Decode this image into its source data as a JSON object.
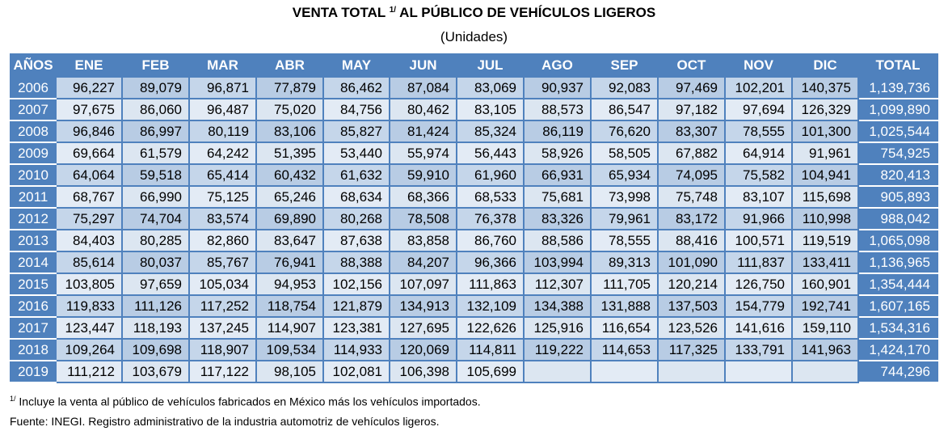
{
  "header": {
    "title_pre": "VENTA TOTAL",
    "title_sup": "1/",
    "title_post": "AL PÚBLICO DE VEHÍCULOS LIGEROS",
    "subtitle": "(Unidades)"
  },
  "table": {
    "columns": [
      "AÑOS",
      "ENE",
      "FEB",
      "MAR",
      "ABR",
      "MAY",
      "JUN",
      "JUL",
      "AGO",
      "SEP",
      "OCT",
      "NOV",
      "DIC",
      "TOTAL"
    ],
    "rows": [
      {
        "year": "2006",
        "values": [
          "96,227",
          "89,079",
          "96,871",
          "77,879",
          "86,462",
          "87,084",
          "83,069",
          "90,937",
          "92,083",
          "97,469",
          "102,201",
          "140,375"
        ],
        "total": "1,139,736"
      },
      {
        "year": "2007",
        "values": [
          "97,675",
          "86,060",
          "96,487",
          "75,020",
          "84,756",
          "80,462",
          "83,105",
          "88,573",
          "86,547",
          "97,182",
          "97,694",
          "126,329"
        ],
        "total": "1,099,890"
      },
      {
        "year": "2008",
        "values": [
          "96,846",
          "86,997",
          "80,119",
          "83,106",
          "85,827",
          "81,424",
          "85,324",
          "86,119",
          "76,620",
          "83,307",
          "78,555",
          "101,300"
        ],
        "total": "1,025,544"
      },
      {
        "year": "2009",
        "values": [
          "69,664",
          "61,579",
          "64,242",
          "51,395",
          "53,440",
          "55,974",
          "56,443",
          "58,926",
          "58,505",
          "67,882",
          "64,914",
          "91,961"
        ],
        "total": "754,925"
      },
      {
        "year": "2010",
        "values": [
          "64,064",
          "59,518",
          "65,414",
          "60,432",
          "61,632",
          "59,910",
          "61,960",
          "66,931",
          "65,934",
          "74,095",
          "75,582",
          "104,941"
        ],
        "total": "820,413"
      },
      {
        "year": "2011",
        "values": [
          "68,767",
          "66,990",
          "75,125",
          "65,246",
          "68,634",
          "68,366",
          "68,533",
          "75,681",
          "73,998",
          "75,748",
          "83,107",
          "115,698"
        ],
        "total": "905,893"
      },
      {
        "year": "2012",
        "values": [
          "75,297",
          "74,704",
          "83,574",
          "69,890",
          "80,268",
          "78,508",
          "76,378",
          "83,326",
          "79,961",
          "83,172",
          "91,966",
          "110,998"
        ],
        "total": "988,042"
      },
      {
        "year": "2013",
        "values": [
          "84,403",
          "80,285",
          "82,860",
          "83,647",
          "87,638",
          "83,858",
          "86,760",
          "88,586",
          "78,555",
          "88,416",
          "100,571",
          "119,519"
        ],
        "total": "1,065,098"
      },
      {
        "year": "2014",
        "values": [
          "85,614",
          "80,037",
          "85,767",
          "76,941",
          "88,388",
          "84,207",
          "96,366",
          "103,994",
          "89,313",
          "101,090",
          "111,837",
          "133,411"
        ],
        "total": "1,136,965"
      },
      {
        "year": "2015",
        "values": [
          "103,805",
          "97,659",
          "105,034",
          "94,953",
          "102,156",
          "107,097",
          "111,863",
          "112,307",
          "111,705",
          "120,214",
          "126,750",
          "160,901"
        ],
        "total": "1,354,444"
      },
      {
        "year": "2016",
        "values": [
          "119,833",
          "111,126",
          "117,252",
          "118,754",
          "121,879",
          "134,913",
          "132,109",
          "134,388",
          "131,888",
          "137,503",
          "154,779",
          "192,741"
        ],
        "total": "1,607,165"
      },
      {
        "year": "2017",
        "values": [
          "123,447",
          "118,193",
          "137,245",
          "114,907",
          "123,381",
          "127,695",
          "122,626",
          "125,916",
          "116,654",
          "123,526",
          "141,616",
          "159,110"
        ],
        "total": "1,534,316"
      },
      {
        "year": "2018",
        "values": [
          "109,264",
          "109,698",
          "118,907",
          "109,534",
          "114,933",
          "120,069",
          "114,811",
          "119,222",
          "114,653",
          "117,325",
          "133,791",
          "141,963"
        ],
        "total": "1,424,170"
      },
      {
        "year": "2019",
        "values": [
          "111,212",
          "103,679",
          "117,122",
          "98,105",
          "102,081",
          "106,398",
          "105,699",
          "",
          "",
          "",
          "",
          ""
        ],
        "total": "744,296"
      }
    ]
  },
  "footer": {
    "note_sup": "1/",
    "note_text": "Incluye la venta al público de vehículos fabricados en México más los vehículos importados.",
    "source": "Fuente: INEGI. Registro administrativo de la industria automotriz de vehículos ligeros."
  },
  "colors": {
    "header_blue": "#4f81bd",
    "row_dark": "#b8cce4",
    "row_light": "#dce6f1"
  }
}
